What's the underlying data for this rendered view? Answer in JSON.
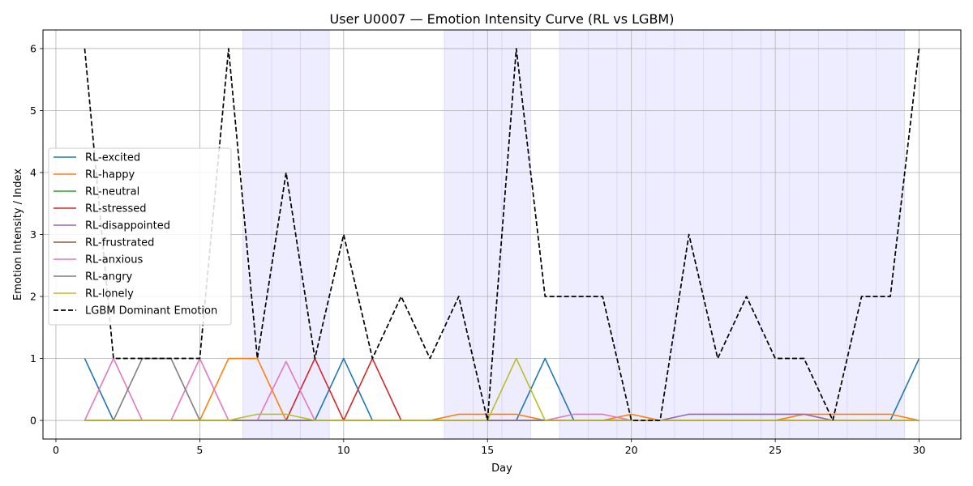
{
  "chart_data": {
    "type": "line",
    "title": "User U0007 — Emotion Intensity Curve (RL vs LGBM)",
    "xlabel": "Day",
    "ylabel": "Emotion Intensity / Index",
    "xlim": [
      -0.45,
      31.45
    ],
    "ylim": [
      -0.3,
      6.3
    ],
    "xticks": [
      0,
      5,
      10,
      15,
      20,
      25,
      30
    ],
    "yticks": [
      0,
      1,
      2,
      3,
      4,
      5,
      6
    ],
    "grid": true,
    "legend_position": "center-left",
    "x": [
      1,
      2,
      3,
      4,
      5,
      6,
      7,
      8,
      9,
      10,
      11,
      12,
      13,
      14,
      15,
      16,
      17,
      18,
      19,
      20,
      21,
      22,
      23,
      24,
      25,
      26,
      27,
      28,
      29,
      30
    ],
    "shaded_days": [
      7,
      8,
      9,
      14,
      15,
      16,
      18,
      19,
      20,
      21,
      22,
      23,
      24,
      25,
      26,
      27,
      28,
      29
    ],
    "shade_color": "#e6e6ff",
    "series": [
      {
        "name": "RL-excited",
        "color": "#1f77b4",
        "dash": false,
        "values": [
          1,
          0,
          0,
          0,
          0,
          0,
          0,
          0,
          0,
          1,
          0,
          0,
          0,
          0,
          0,
          0,
          1,
          0,
          0,
          0,
          0,
          0,
          0,
          0,
          0,
          0,
          0,
          0,
          0,
          1
        ]
      },
      {
        "name": "RL-happy",
        "color": "#ff7f0e",
        "dash": false,
        "values": [
          0,
          0,
          0,
          0,
          0,
          1,
          1,
          0,
          0,
          0,
          0,
          0,
          0,
          0.1,
          0.1,
          0.1,
          0,
          0,
          0,
          0.1,
          0,
          0,
          0,
          0,
          0,
          0.1,
          0.1,
          0.1,
          0.1,
          0
        ]
      },
      {
        "name": "RL-neutral",
        "color": "#2ca02c",
        "dash": false,
        "values": [
          0,
          0,
          0,
          0,
          0,
          0,
          0,
          0,
          0,
          0,
          0,
          0,
          0,
          0,
          0,
          0,
          0,
          0,
          0,
          0,
          0,
          0,
          0,
          0,
          0,
          0,
          0,
          0,
          0,
          0
        ]
      },
      {
        "name": "RL-stressed",
        "color": "#d62728",
        "dash": false,
        "values": [
          0,
          0,
          0,
          0,
          0,
          0,
          0,
          0,
          1,
          0,
          1,
          0,
          0,
          0,
          0,
          0,
          0,
          0,
          0,
          0,
          0,
          0,
          0,
          0,
          0,
          0,
          0,
          0,
          0,
          0
        ]
      },
      {
        "name": "RL-disappointed",
        "color": "#9467bd",
        "dash": false,
        "values": [
          0,
          0,
          0,
          0,
          0,
          0,
          0,
          0,
          0,
          0,
          0,
          0,
          0,
          0,
          0,
          0,
          0,
          0,
          0,
          0,
          0,
          0.1,
          0.1,
          0.1,
          0.1,
          0.1,
          0,
          0,
          0,
          0
        ]
      },
      {
        "name": "RL-frustrated",
        "color": "#8c564b",
        "dash": false,
        "values": [
          0,
          0,
          0,
          0,
          0,
          0,
          0,
          0,
          0,
          0,
          0,
          0,
          0,
          0,
          0,
          0,
          0,
          0,
          0,
          0,
          0,
          0,
          0,
          0,
          0,
          0,
          0,
          0,
          0,
          0
        ]
      },
      {
        "name": "RL-anxious",
        "color": "#e377c2",
        "dash": false,
        "values": [
          0,
          1,
          0,
          0,
          1,
          0,
          0,
          0.95,
          0,
          0,
          0,
          0,
          0,
          0,
          0,
          0,
          0,
          0.1,
          0.1,
          0,
          0,
          0,
          0,
          0,
          0,
          0,
          0,
          0,
          0,
          0
        ]
      },
      {
        "name": "RL-angry",
        "color": "#7f7f7f",
        "dash": false,
        "values": [
          0,
          0,
          1,
          1,
          0,
          0,
          0,
          0,
          0,
          0,
          0,
          0,
          0,
          0,
          0,
          0,
          0,
          0,
          0,
          0,
          0,
          0,
          0,
          0,
          0,
          0,
          0,
          0,
          0,
          0
        ]
      },
      {
        "name": "RL-lonely",
        "color": "#bcbd22",
        "dash": false,
        "values": [
          0,
          0,
          0,
          0,
          0,
          0,
          0.1,
          0.1,
          0,
          0,
          0,
          0,
          0,
          0,
          0,
          1,
          0,
          0,
          0,
          0,
          0,
          0,
          0,
          0,
          0,
          0,
          0,
          0,
          0,
          0
        ]
      },
      {
        "name": "LGBM Dominant Emotion",
        "color": "#000000",
        "dash": true,
        "values": [
          6,
          1,
          1,
          1,
          1,
          6,
          1,
          4,
          1,
          3,
          1,
          2,
          1,
          2,
          0,
          6,
          2,
          2,
          2,
          0,
          0,
          3,
          1,
          2,
          1,
          1,
          0,
          2,
          2,
          6
        ]
      }
    ]
  }
}
